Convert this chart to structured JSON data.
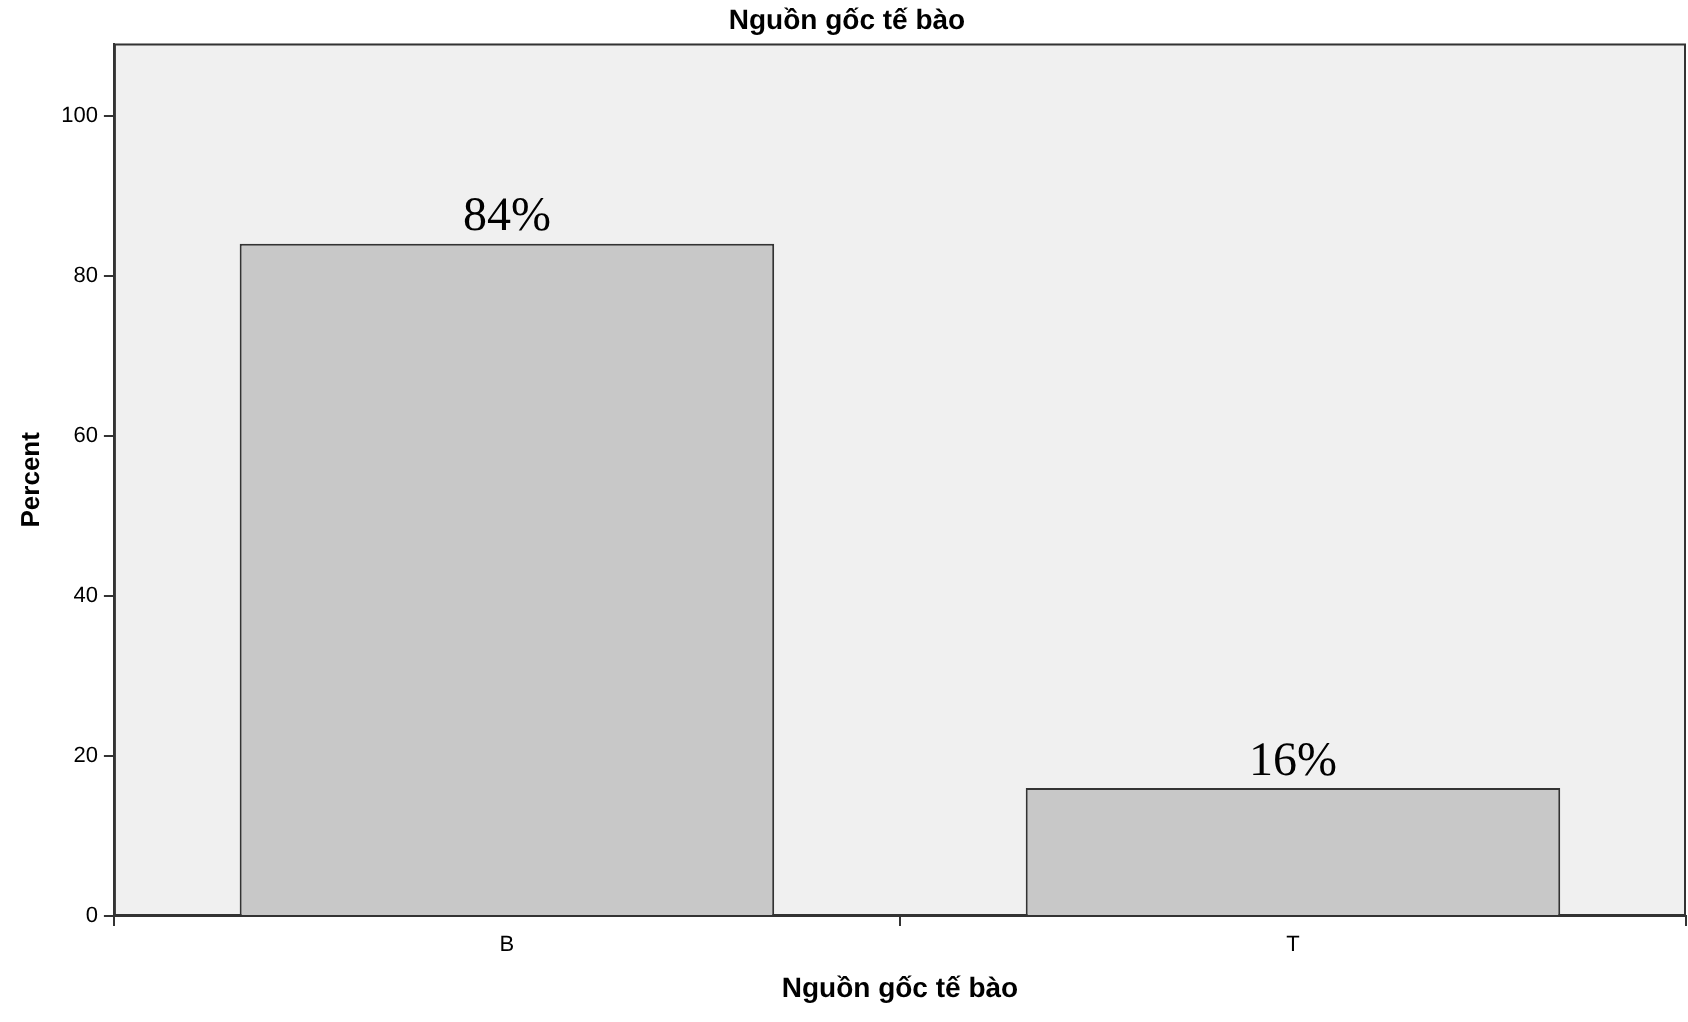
{
  "chart_data": {
    "type": "bar",
    "title": "Nguồn gốc tế bào",
    "xlabel": "Nguồn gốc tế bào",
    "ylabel": "Percent",
    "categories": [
      "B",
      "T"
    ],
    "values": [
      84,
      16
    ],
    "color": "#c8c8c8",
    "value_labels": [
      "84%",
      "16%"
    ],
    "ylim": [
      0,
      109
    ],
    "yticks": [
      0,
      20,
      40,
      60,
      80,
      100
    ],
    "grid": false,
    "legend": false
  }
}
